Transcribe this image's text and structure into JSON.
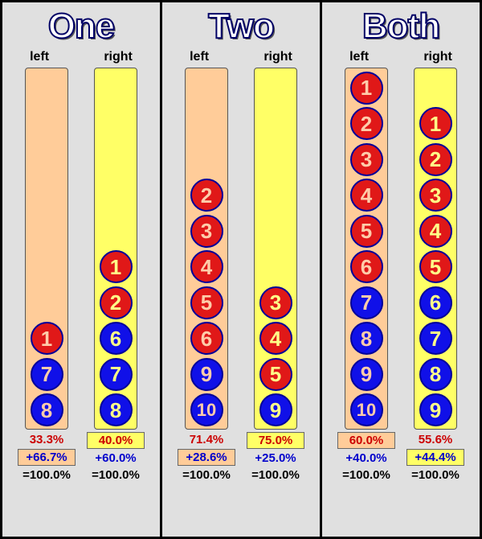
{
  "colors": {
    "peach": "#ffcc99",
    "yellow": "#ffff66",
    "red_ball": "#e01818",
    "blue_ball": "#1010e8",
    "txt_peach": "#ffccaa",
    "txt_yellow": "#ffff88",
    "red_text": "#cc0000",
    "blue_text": "#0000cc",
    "black_text": "#000000"
  },
  "panels": [
    {
      "title": "One",
      "left_label": "left",
      "right_label": "right",
      "columns": [
        {
          "side": "left",
          "tube_color": "peach",
          "balls": [
            {
              "n": "1",
              "fill": "red",
              "txt": "peach"
            },
            {
              "n": "7",
              "fill": "blue",
              "txt": "peach"
            },
            {
              "n": "8",
              "fill": "blue",
              "txt": "peach"
            }
          ],
          "pct1": {
            "text": "33.3%",
            "color": "red_text",
            "box": "none"
          },
          "pct2": {
            "text": "+66.7%",
            "color": "blue_text",
            "box": "peach"
          },
          "pct3": {
            "text": "=100.0%",
            "color": "black_text",
            "box": "none"
          }
        },
        {
          "side": "right",
          "tube_color": "yellow",
          "balls": [
            {
              "n": "1",
              "fill": "red",
              "txt": "yellow"
            },
            {
              "n": "2",
              "fill": "red",
              "txt": "yellow"
            },
            {
              "n": "6",
              "fill": "blue",
              "txt": "yellow"
            },
            {
              "n": "7",
              "fill": "blue",
              "txt": "yellow"
            },
            {
              "n": "8",
              "fill": "blue",
              "txt": "yellow"
            }
          ],
          "pct1": {
            "text": "40.0%",
            "color": "red_text",
            "box": "yellow"
          },
          "pct2": {
            "text": "+60.0%",
            "color": "blue_text",
            "box": "none"
          },
          "pct3": {
            "text": "=100.0%",
            "color": "black_text",
            "box": "none"
          }
        }
      ]
    },
    {
      "title": "Two",
      "left_label": "left",
      "right_label": "right",
      "columns": [
        {
          "side": "left",
          "tube_color": "peach",
          "balls": [
            {
              "n": "2",
              "fill": "red",
              "txt": "peach"
            },
            {
              "n": "3",
              "fill": "red",
              "txt": "peach"
            },
            {
              "n": "4",
              "fill": "red",
              "txt": "peach"
            },
            {
              "n": "5",
              "fill": "red",
              "txt": "peach"
            },
            {
              "n": "6",
              "fill": "red",
              "txt": "peach"
            },
            {
              "n": "9",
              "fill": "blue",
              "txt": "peach"
            },
            {
              "n": "10",
              "fill": "blue",
              "txt": "peach"
            }
          ],
          "pct1": {
            "text": "71.4%",
            "color": "red_text",
            "box": "none"
          },
          "pct2": {
            "text": "+28.6%",
            "color": "blue_text",
            "box": "peach"
          },
          "pct3": {
            "text": "=100.0%",
            "color": "black_text",
            "box": "none"
          }
        },
        {
          "side": "right",
          "tube_color": "yellow",
          "balls": [
            {
              "n": "3",
              "fill": "red",
              "txt": "yellow"
            },
            {
              "n": "4",
              "fill": "red",
              "txt": "yellow"
            },
            {
              "n": "5",
              "fill": "red",
              "txt": "yellow"
            },
            {
              "n": "9",
              "fill": "blue",
              "txt": "yellow"
            }
          ],
          "pct1": {
            "text": "75.0%",
            "color": "red_text",
            "box": "yellow"
          },
          "pct2": {
            "text": "+25.0%",
            "color": "blue_text",
            "box": "none"
          },
          "pct3": {
            "text": "=100.0%",
            "color": "black_text",
            "box": "none"
          }
        }
      ]
    },
    {
      "title": "Both",
      "left_label": "left",
      "right_label": "right",
      "columns": [
        {
          "side": "left",
          "tube_color": "peach",
          "balls": [
            {
              "n": "1",
              "fill": "red",
              "txt": "peach"
            },
            {
              "n": "2",
              "fill": "red",
              "txt": "peach"
            },
            {
              "n": "3",
              "fill": "red",
              "txt": "peach"
            },
            {
              "n": "4",
              "fill": "red",
              "txt": "peach"
            },
            {
              "n": "5",
              "fill": "red",
              "txt": "peach"
            },
            {
              "n": "6",
              "fill": "red",
              "txt": "peach"
            },
            {
              "n": "7",
              "fill": "blue",
              "txt": "peach"
            },
            {
              "n": "8",
              "fill": "blue",
              "txt": "peach"
            },
            {
              "n": "9",
              "fill": "blue",
              "txt": "peach"
            },
            {
              "n": "10",
              "fill": "blue",
              "txt": "peach"
            }
          ],
          "pct1": {
            "text": "60.0%",
            "color": "red_text",
            "box": "peach"
          },
          "pct2": {
            "text": "+40.0%",
            "color": "blue_text",
            "box": "none"
          },
          "pct3": {
            "text": "=100.0%",
            "color": "black_text",
            "box": "none"
          }
        },
        {
          "side": "right",
          "tube_color": "yellow",
          "balls": [
            {
              "n": "1",
              "fill": "red",
              "txt": "yellow"
            },
            {
              "n": "2",
              "fill": "red",
              "txt": "yellow"
            },
            {
              "n": "3",
              "fill": "red",
              "txt": "yellow"
            },
            {
              "n": "4",
              "fill": "red",
              "txt": "yellow"
            },
            {
              "n": "5",
              "fill": "red",
              "txt": "yellow"
            },
            {
              "n": "6",
              "fill": "blue",
              "txt": "yellow"
            },
            {
              "n": "7",
              "fill": "blue",
              "txt": "yellow"
            },
            {
              "n": "8",
              "fill": "blue",
              "txt": "yellow"
            },
            {
              "n": "9",
              "fill": "blue",
              "txt": "yellow"
            }
          ],
          "pct1": {
            "text": "55.6%",
            "color": "red_text",
            "box": "none"
          },
          "pct2": {
            "text": "+44.4%",
            "color": "blue_text",
            "box": "yellow"
          },
          "pct3": {
            "text": "=100.0%",
            "color": "black_text",
            "box": "none"
          }
        }
      ]
    }
  ]
}
